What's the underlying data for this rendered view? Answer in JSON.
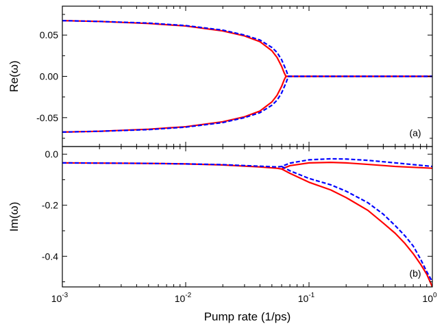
{
  "chart_data": {
    "type": "line",
    "xlabel": "Pump rate (1/ps)",
    "x_scale": "log",
    "xlim": [
      0.001,
      1
    ],
    "x_ticks": [
      0.001,
      0.01,
      0.1,
      1
    ],
    "x_tick_labels": [
      [
        "10",
        "-3"
      ],
      [
        "10",
        "-2"
      ],
      [
        "10",
        "-1"
      ],
      [
        "10",
        "0"
      ]
    ],
    "series_styles": [
      {
        "color": "#ff0000",
        "dash": "solid"
      },
      {
        "color": "#0000ff",
        "dash": "dashed"
      }
    ],
    "panels": [
      {
        "label": "(a)",
        "ylabel": "Re(ω)",
        "ylim": [
          -0.085,
          0.085
        ],
        "y_ticks": [
          0.05,
          0.0,
          -0.05
        ],
        "y_tick_labels": [
          "0.05",
          "0.00",
          "-0.05"
        ],
        "series": [
          {
            "style": 0,
            "points": [
              [
                0.001,
                0.0675
              ],
              [
                0.002,
                0.0665
              ],
              [
                0.005,
                0.064
              ],
              [
                0.01,
                0.061
              ],
              [
                0.02,
                0.055
              ],
              [
                0.03,
                0.049
              ],
              [
                0.04,
                0.042
              ],
              [
                0.05,
                0.031
              ],
              [
                0.055,
                0.023
              ],
              [
                0.06,
                0.012
              ],
              [
                0.063,
                0.004
              ],
              [
                0.065,
                0.0
              ],
              [
                0.1,
                0.0
              ],
              [
                0.3,
                0.0
              ],
              [
                1,
                0.0
              ]
            ]
          },
          {
            "style": 0,
            "points": [
              [
                0.001,
                -0.0675
              ],
              [
                0.002,
                -0.0665
              ],
              [
                0.005,
                -0.064
              ],
              [
                0.01,
                -0.061
              ],
              [
                0.02,
                -0.055
              ],
              [
                0.03,
                -0.049
              ],
              [
                0.04,
                -0.042
              ],
              [
                0.05,
                -0.031
              ],
              [
                0.055,
                -0.023
              ],
              [
                0.06,
                -0.012
              ],
              [
                0.063,
                -0.004
              ],
              [
                0.065,
                0.0
              ],
              [
                0.1,
                0.0
              ],
              [
                0.3,
                0.0
              ],
              [
                1,
                0.0
              ]
            ]
          },
          {
            "style": 1,
            "points": [
              [
                0.001,
                0.0675
              ],
              [
                0.002,
                0.0665
              ],
              [
                0.005,
                0.0645
              ],
              [
                0.01,
                0.0615
              ],
              [
                0.02,
                0.056
              ],
              [
                0.03,
                0.05
              ],
              [
                0.04,
                0.044
              ],
              [
                0.05,
                0.035
              ],
              [
                0.055,
                0.029
              ],
              [
                0.06,
                0.02
              ],
              [
                0.065,
                0.008
              ],
              [
                0.068,
                0.0
              ],
              [
                0.1,
                0.0
              ],
              [
                0.3,
                0.0
              ],
              [
                1,
                0.0
              ]
            ]
          },
          {
            "style": 1,
            "points": [
              [
                0.001,
                -0.0675
              ],
              [
                0.002,
                -0.0665
              ],
              [
                0.005,
                -0.0645
              ],
              [
                0.01,
                -0.0615
              ],
              [
                0.02,
                -0.056
              ],
              [
                0.03,
                -0.05
              ],
              [
                0.04,
                -0.044
              ],
              [
                0.05,
                -0.035
              ],
              [
                0.055,
                -0.029
              ],
              [
                0.06,
                -0.02
              ],
              [
                0.065,
                -0.008
              ],
              [
                0.068,
                0.0
              ],
              [
                0.1,
                0.0
              ],
              [
                0.3,
                0.0
              ],
              [
                1,
                0.0
              ]
            ]
          }
        ]
      },
      {
        "label": "(b)",
        "ylabel": "Im(ω)",
        "ylim": [
          -0.52,
          0.03
        ],
        "y_ticks": [
          0.0,
          -0.2,
          -0.4
        ],
        "y_tick_labels": [
          "0.0",
          "-0.2",
          "-0.4"
        ],
        "series": [
          {
            "style": 0,
            "points": [
              [
                0.001,
                -0.034
              ],
              [
                0.005,
                -0.036
              ],
              [
                0.01,
                -0.038
              ],
              [
                0.02,
                -0.042
              ],
              [
                0.04,
                -0.05
              ],
              [
                0.055,
                -0.055
              ],
              [
                0.06,
                -0.058
              ],
              [
                0.07,
                -0.045
              ],
              [
                0.1,
                -0.034
              ],
              [
                0.15,
                -0.032
              ],
              [
                0.2,
                -0.034
              ],
              [
                0.3,
                -0.04
              ],
              [
                0.5,
                -0.048
              ],
              [
                1,
                -0.055
              ]
            ]
          },
          {
            "style": 0,
            "points": [
              [
                0.06,
                -0.058
              ],
              [
                0.07,
                -0.075
              ],
              [
                0.1,
                -0.11
              ],
              [
                0.15,
                -0.14
              ],
              [
                0.2,
                -0.17
              ],
              [
                0.3,
                -0.22
              ],
              [
                0.4,
                -0.27
              ],
              [
                0.5,
                -0.31
              ],
              [
                0.6,
                -0.35
              ],
              [
                0.7,
                -0.39
              ],
              [
                0.8,
                -0.43
              ],
              [
                0.9,
                -0.47
              ],
              [
                1,
                -0.52
              ]
            ]
          },
          {
            "style": 1,
            "points": [
              [
                0.001,
                -0.034
              ],
              [
                0.005,
                -0.036
              ],
              [
                0.01,
                -0.038
              ],
              [
                0.02,
                -0.041
              ],
              [
                0.04,
                -0.047
              ],
              [
                0.055,
                -0.05
              ],
              [
                0.06,
                -0.048
              ],
              [
                0.07,
                -0.035
              ],
              [
                0.1,
                -0.022
              ],
              [
                0.15,
                -0.018
              ],
              [
                0.2,
                -0.019
              ],
              [
                0.3,
                -0.024
              ],
              [
                0.5,
                -0.034
              ],
              [
                1,
                -0.048
              ]
            ]
          },
          {
            "style": 1,
            "points": [
              [
                0.06,
                -0.048
              ],
              [
                0.07,
                -0.065
              ],
              [
                0.1,
                -0.095
              ],
              [
                0.15,
                -0.12
              ],
              [
                0.2,
                -0.145
              ],
              [
                0.3,
                -0.19
              ],
              [
                0.4,
                -0.235
              ],
              [
                0.5,
                -0.28
              ],
              [
                0.6,
                -0.32
              ],
              [
                0.7,
                -0.36
              ],
              [
                0.8,
                -0.41
              ],
              [
                0.9,
                -0.46
              ],
              [
                1,
                -0.5
              ]
            ]
          }
        ]
      }
    ]
  }
}
